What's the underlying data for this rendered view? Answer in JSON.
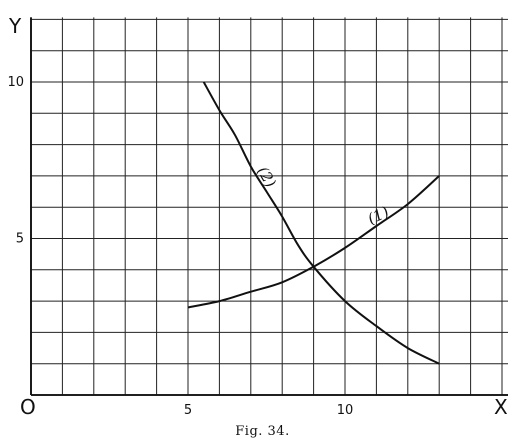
{
  "caption": "Fig. 34.",
  "chart_data": {
    "type": "line",
    "xlabel": "X",
    "ylabel": "Y",
    "origin_label": "O",
    "xlim": [
      0,
      15
    ],
    "ylim": [
      0,
      12
    ],
    "x_ticks": [
      5,
      10
    ],
    "y_ticks": [
      5,
      10
    ],
    "grid": true,
    "series": [
      {
        "name": "(1)",
        "x": [
          5,
          6,
          7,
          8,
          9,
          10,
          11,
          12,
          13
        ],
        "y": [
          2.8,
          3.0,
          3.3,
          3.6,
          4.1,
          4.7,
          5.4,
          6.1,
          7.0
        ]
      },
      {
        "name": "(2)",
        "x": [
          5.5,
          6,
          6.5,
          7,
          7.5,
          8,
          8.5,
          9,
          10,
          11,
          12,
          13
        ],
        "y": [
          10.0,
          9.1,
          8.3,
          7.3,
          6.5,
          5.7,
          4.8,
          4.1,
          3.0,
          2.2,
          1.5,
          1.0
        ]
      }
    ]
  }
}
